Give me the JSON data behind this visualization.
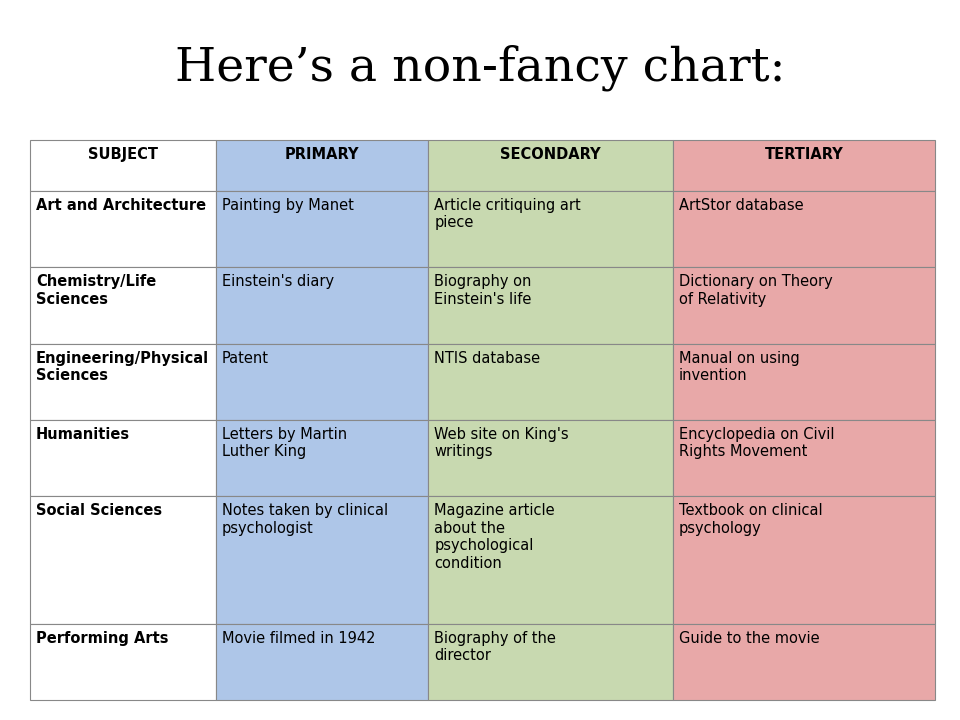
{
  "title": "Here’s a non-fancy chart:",
  "title_fontsize": 34,
  "columns": [
    "SUBJECT",
    "PRIMARY",
    "SECONDARY",
    "TERTIARY"
  ],
  "header_colors": [
    "#ffffff",
    "#aec6e8",
    "#c8d9b0",
    "#e8a8a8"
  ],
  "col_colors": [
    "#ffffff",
    "#aec6e8",
    "#c8d9b0",
    "#e8a8a8"
  ],
  "rows": [
    [
      "Art and Architecture",
      "Painting by Manet",
      "Article critiquing art\npiece",
      "ArtStor database"
    ],
    [
      "Chemistry/Life\nSciences",
      "Einstein's diary",
      "Biography on\nEinstein's life",
      "Dictionary on Theory\nof Relativity"
    ],
    [
      "Engineering/Physical\nSciences",
      "Patent",
      "NTIS database",
      "Manual on using\ninvention"
    ],
    [
      "Humanities",
      "Letters by Martin\nLuther King",
      "Web site on King's\nwritings",
      "Encyclopedia on Civil\nRights Movement"
    ],
    [
      "Social Sciences",
      "Notes taken by clinical\npsychologist",
      "Magazine article\nabout the\npsychological\ncondition",
      "Textbook on clinical\npsychology"
    ],
    [
      "Performing Arts",
      "Movie filmed in 1942",
      "Biography of the\ndirector",
      "Guide to the movie"
    ]
  ],
  "background_color": "#ffffff",
  "border_color": "#888888",
  "text_color": "#000000",
  "header_fontsize": 10.5,
  "cell_fontsize": 10.5,
  "figure_width": 9.6,
  "figure_height": 7.2
}
